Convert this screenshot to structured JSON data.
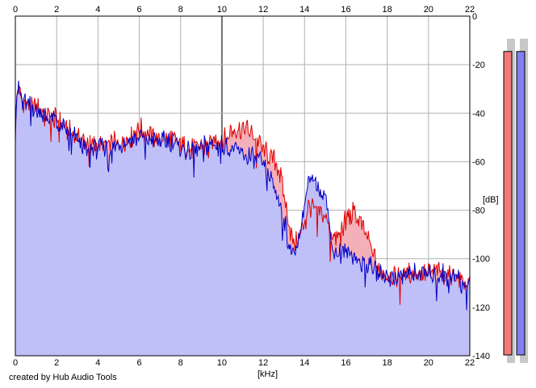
{
  "credit": "created by Hub Audio Tools",
  "meters": {
    "left_color": "#f07a7a",
    "right_color": "#8080f0",
    "left_level": 0.95,
    "right_level": 0.95
  },
  "chart_data": {
    "type": "area",
    "title": "",
    "xlabel": "[kHz]",
    "ylabel": "[dB]",
    "xlim": [
      0,
      22
    ],
    "ylim": [
      -140,
      0
    ],
    "xticks": [
      0,
      2,
      4,
      6,
      8,
      10,
      12,
      14,
      16,
      18,
      20,
      22
    ],
    "yticks": [
      0,
      -20,
      -40,
      -60,
      -80,
      -100,
      -120,
      -140
    ],
    "ytick_labels": [
      "0",
      "-20",
      "-40",
      "-60",
      "-80",
      "-100",
      "-120",
      "-140"
    ],
    "grid": true,
    "x": [
      0,
      0.1,
      0.3,
      0.5,
      1,
      1.5,
      2,
      2.5,
      3,
      3.5,
      4,
      4.5,
      5,
      5.5,
      6,
      6.5,
      7,
      7.5,
      8,
      8.5,
      9,
      9.5,
      10,
      10.5,
      11,
      11.5,
      12,
      12.3,
      12.6,
      12.9,
      13.2,
      13.5,
      13.8,
      14.2,
      14.6,
      15,
      15.3,
      15.6,
      16,
      16.4,
      16.8,
      17.2,
      17.6,
      18,
      18.5,
      19,
      19.5,
      20,
      20.5,
      21,
      21.5,
      22
    ],
    "series": [
      {
        "color": "#e00000",
        "fill": "#f4b0b8",
        "values": [
          -45,
          -30,
          -34,
          -36,
          -38,
          -40,
          -42,
          -47,
          -50,
          -52,
          -54,
          -53,
          -52,
          -51,
          -46,
          -49,
          -51,
          -50,
          -53,
          -55,
          -54,
          -52,
          -51,
          -47,
          -46,
          -49,
          -55,
          -58,
          -60,
          -68,
          -84,
          -95,
          -90,
          -78,
          -80,
          -82,
          -90,
          -92,
          -83,
          -81,
          -87,
          -95,
          -105,
          -106,
          -107,
          -106,
          -105,
          -106,
          -105,
          -107,
          -108,
          -111
        ]
      },
      {
        "color": "#0000c8",
        "fill": "#c0c0f8",
        "values": [
          -44,
          -29,
          -33,
          -36,
          -39,
          -41,
          -44,
          -48,
          -51,
          -53,
          -55,
          -54,
          -53,
          -52,
          -50,
          -51,
          -52,
          -51,
          -54,
          -56,
          -54,
          -53,
          -53,
          -55,
          -57,
          -58,
          -61,
          -66,
          -72,
          -80,
          -92,
          -99,
          -88,
          -68,
          -70,
          -72,
          -94,
          -98,
          -97,
          -99,
          -102,
          -103,
          -106,
          -107,
          -108,
          -107,
          -106,
          -107,
          -106,
          -107,
          -108,
          -112
        ]
      }
    ]
  }
}
